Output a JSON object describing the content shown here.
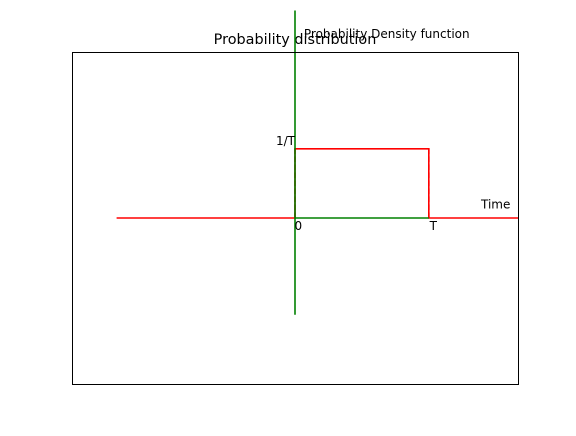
{
  "chart_data": {
    "type": "line",
    "title": "Probability distribution",
    "xlabel": "",
    "ylabel": "",
    "grid": false,
    "legend": "none",
    "xlim": [
      -2.0,
      2.0
    ],
    "ylim": [
      -1.2,
      1.2
    ],
    "series": [
      {
        "color": "#ff0000",
        "style": "solid",
        "x": [
          -1.6,
          0,
          0,
          1.2,
          1.2,
          2.0
        ],
        "y": [
          0,
          0,
          0.5,
          0.5,
          0,
          0
        ]
      },
      {
        "color": "#ff0000",
        "style": "dashed",
        "x": [
          0,
          0
        ],
        "y": [
          0,
          0.5
        ]
      },
      {
        "color": "#ff0000",
        "style": "dashed",
        "x": [
          1.2,
          1.2
        ],
        "y": [
          0,
          0.5
        ]
      },
      {
        "color": "#008000",
        "style": "solid",
        "x": [
          0,
          0
        ],
        "y": [
          -0.7,
          1.5
        ]
      },
      {
        "color": "#008000",
        "style": "solid",
        "x": [
          0,
          1.2
        ],
        "y": [
          0,
          0
        ]
      }
    ],
    "annotations": [
      {
        "id": "pdf",
        "text": "Probability Density function",
        "x": 0.08,
        "y": 1.3,
        "anchor": "start",
        "dy": 0
      },
      {
        "id": "height",
        "text": "1/T",
        "x": 0.0,
        "y": 0.5,
        "anchor": "end",
        "dy": -0.3
      },
      {
        "id": "origin",
        "text": "0",
        "x": 0.03,
        "y": 0.0,
        "anchor": "middle",
        "dy": 1.0
      },
      {
        "id": "t",
        "text": "T",
        "x": 1.24,
        "y": 0.0,
        "anchor": "middle",
        "dy": 1.0
      },
      {
        "id": "time",
        "text": "Time",
        "x": 1.8,
        "y": 0.0,
        "anchor": "middle",
        "dy": -0.8
      }
    ]
  }
}
